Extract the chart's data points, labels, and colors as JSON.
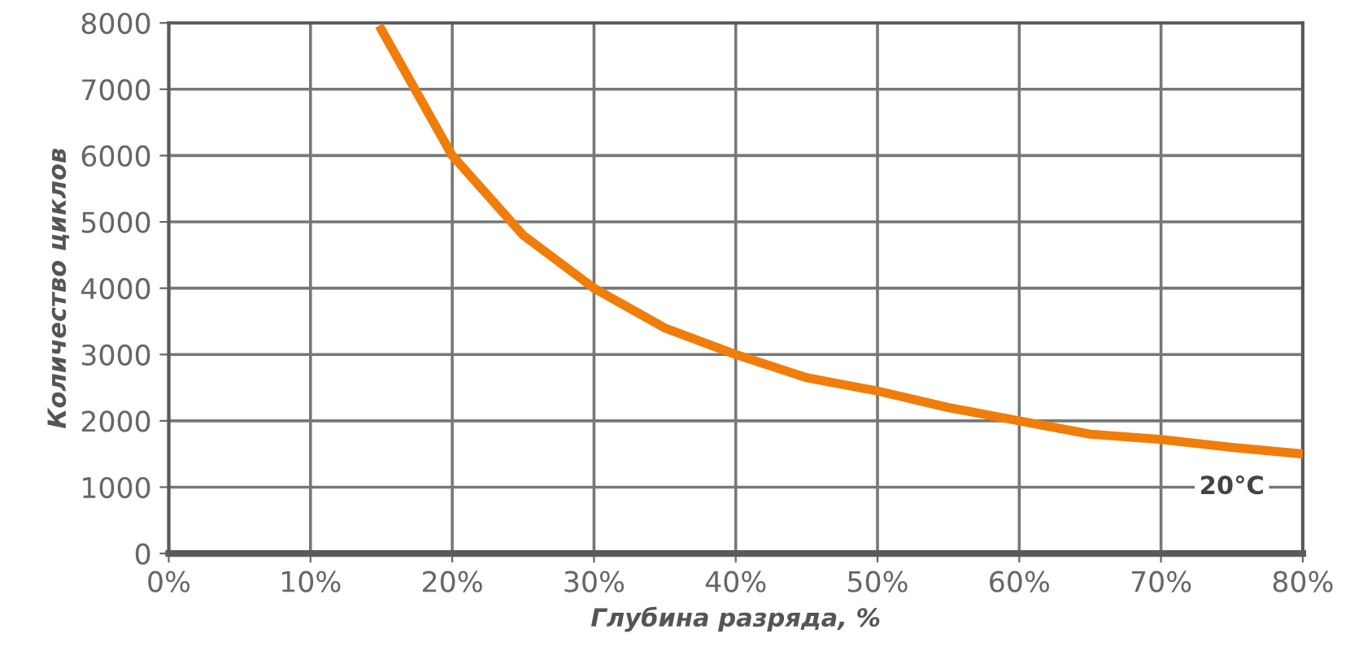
{
  "chart_data": {
    "type": "line",
    "xlabel": "Глубина разряда, %",
    "ylabel": "Количество циклов",
    "x": [
      15,
      20,
      25,
      30,
      35,
      40,
      45,
      50,
      55,
      60,
      65,
      70,
      75,
      80
    ],
    "series": [
      {
        "name": "20°C",
        "color": "#f07d0a",
        "values": [
          7900,
          6000,
          4800,
          4000,
          3400,
          3000,
          2650,
          2450,
          2200,
          2000,
          1800,
          1720,
          1600,
          1500
        ]
      }
    ],
    "xlim": [
      0,
      80
    ],
    "xticks": [
      {
        "value": 0,
        "label": "0%"
      },
      {
        "value": 10,
        "label": "10%"
      },
      {
        "value": 20,
        "label": "20%"
      },
      {
        "value": 30,
        "label": "30%"
      },
      {
        "value": 40,
        "label": "40%"
      },
      {
        "value": 50,
        "label": "50%"
      },
      {
        "value": 60,
        "label": "60%"
      },
      {
        "value": 70,
        "label": "70%"
      },
      {
        "value": 80,
        "label": "80%"
      }
    ],
    "ylim": [
      0,
      8000
    ],
    "yticks": [
      0,
      1000,
      2000,
      3000,
      4000,
      5000,
      6000,
      7000,
      8000
    ],
    "grid": true,
    "legend": false,
    "marker": "none",
    "line_style": "solid"
  }
}
